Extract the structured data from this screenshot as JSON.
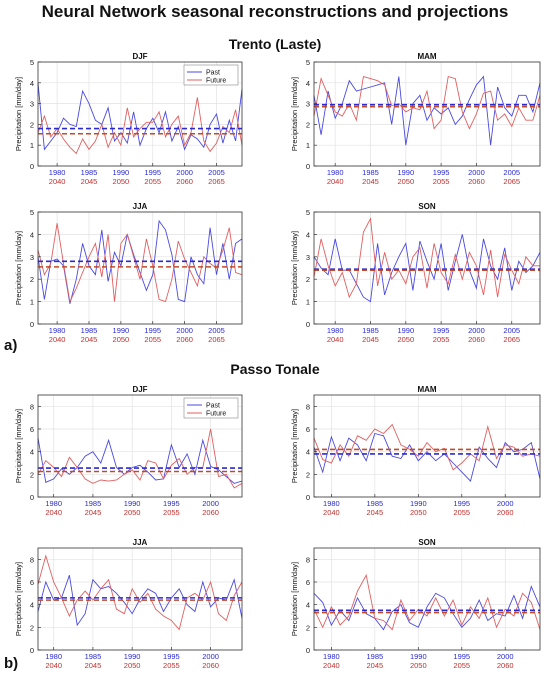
{
  "figure": {
    "title": "Neural Network seasonal reconstructions and projections",
    "sites": [
      {
        "name": "Trento (Laste)",
        "tag": "a)"
      },
      {
        "name": "Passo Tonale",
        "tag": "b)"
      }
    ]
  },
  "colors": {
    "past": "#4a4ae0",
    "future": "#e06060",
    "past_mean": "#2a2ad0",
    "future_mean": "#c04a2a"
  },
  "chart_data": [
    {
      "type": "line",
      "site": "Trento (Laste)",
      "title": "DJF",
      "ylabel": "Precipitation [mm/day]",
      "ylim": [
        0,
        5
      ],
      "yticks": [
        0,
        1,
        2,
        3,
        4,
        5
      ],
      "xlim": [
        1977,
        2009
      ],
      "x_ticks_past": [
        "1980",
        "1985",
        "1990",
        "1995",
        "2000",
        "2005"
      ],
      "x_ticks_future": [
        "2040",
        "2045",
        "2050",
        "2055",
        "2060",
        "2065"
      ],
      "legend": [
        "Past",
        "Future"
      ],
      "legend_position": "top-right",
      "grid": true,
      "x": [
        1977,
        1978,
        1979,
        1980,
        1981,
        1982,
        1983,
        1984,
        1985,
        1986,
        1987,
        1988,
        1989,
        1990,
        1991,
        1992,
        1993,
        1994,
        1995,
        1996,
        1997,
        1998,
        1999,
        2000,
        2001,
        2002,
        2003,
        2004,
        2005,
        2006,
        2007,
        2008,
        2009
      ],
      "series": [
        {
          "name": "Past",
          "values": [
            4.0,
            0.8,
            1.2,
            1.6,
            2.3,
            2.0,
            1.9,
            3.6,
            3.0,
            2.2,
            2.0,
            2.8,
            1.2,
            1.6,
            1.1,
            2.6,
            1.0,
            1.8,
            2.3,
            1.6,
            2.6,
            1.2,
            1.9,
            0.8,
            1.5,
            1.3,
            0.9,
            2.0,
            2.5,
            1.1,
            2.2,
            1.2,
            3.7
          ],
          "mean": 1.8
        },
        {
          "name": "Future",
          "values": [
            1.6,
            2.4,
            1.4,
            1.8,
            1.3,
            0.9,
            0.6,
            1.3,
            0.8,
            1.2,
            2.0,
            0.9,
            1.6,
            1.0,
            2.8,
            1.4,
            1.8,
            2.1,
            2.1,
            2.6,
            1.4,
            2.0,
            2.4,
            1.0,
            1.6,
            3.3,
            1.2,
            0.7,
            1.1,
            1.9,
            1.6,
            2.7,
            1.0
          ],
          "mean": 1.55
        }
      ]
    },
    {
      "type": "line",
      "site": "Trento (Laste)",
      "title": "MAM",
      "ylabel": "Precipitation [mm/day]",
      "ylim": [
        0,
        5
      ],
      "yticks": [
        0,
        1,
        2,
        3,
        4,
        5
      ],
      "xlim": [
        1977,
        2009
      ],
      "x_ticks_past": [
        "1980",
        "1985",
        "1990",
        "1995",
        "2000",
        "2005"
      ],
      "x_ticks_future": [
        "2040",
        "2045",
        "2050",
        "2055",
        "2060",
        "2065"
      ],
      "grid": true,
      "x": [
        1977,
        1978,
        1979,
        1980,
        1981,
        1982,
        1983,
        1984,
        1985,
        1986,
        1987,
        1988,
        1989,
        1990,
        1991,
        1992,
        1993,
        1994,
        1995,
        1996,
        1997,
        1998,
        1999,
        2000,
        2001,
        2002,
        2003,
        2004,
        2005,
        2006,
        2007,
        2008,
        2009
      ],
      "series": [
        {
          "name": "Past",
          "values": [
            3.4,
            1.5,
            3.6,
            2.3,
            3.0,
            4.1,
            3.6,
            3.7,
            3.8,
            3.9,
            4.0,
            2.0,
            4.3,
            1.0,
            3.0,
            3.4,
            2.2,
            2.8,
            2.5,
            2.8,
            2.0,
            2.4,
            3.2,
            3.9,
            4.3,
            1.0,
            3.8,
            2.8,
            2.4,
            3.4,
            3.4,
            2.6,
            4.0
          ],
          "mean": 2.95
        },
        {
          "name": "Future",
          "values": [
            2.4,
            4.2,
            3.4,
            2.6,
            2.4,
            3.0,
            2.2,
            4.3,
            4.2,
            4.1,
            3.9,
            2.9,
            3.0,
            2.6,
            2.8,
            2.7,
            3.6,
            1.8,
            2.2,
            4.3,
            4.2,
            2.6,
            1.8,
            2.5,
            3.5,
            3.6,
            2.2,
            2.5,
            1.9,
            2.8,
            2.2,
            2.2,
            3.4
          ],
          "mean": 2.85
        }
      ]
    },
    {
      "type": "line",
      "site": "Trento (Laste)",
      "title": "JJA",
      "ylabel": "Precipitation [mm/day]",
      "ylim": [
        0,
        5
      ],
      "yticks": [
        0,
        1,
        2,
        3,
        4,
        5
      ],
      "xlim": [
        1977,
        2009
      ],
      "x_ticks_past": [
        "1980",
        "1985",
        "1990",
        "1995",
        "2000",
        "2005"
      ],
      "x_ticks_future": [
        "2040",
        "2045",
        "2050",
        "2055",
        "2060",
        "2065"
      ],
      "grid": true,
      "x": [
        1977,
        1978,
        1979,
        1980,
        1981,
        1982,
        1983,
        1984,
        1985,
        1986,
        1987,
        1988,
        1989,
        1990,
        1991,
        1992,
        1993,
        1994,
        1995,
        1996,
        1997,
        1998,
        1999,
        2000,
        2001,
        2002,
        2003,
        2004,
        2005,
        2006,
        2007,
        2008,
        2009
      ],
      "series": [
        {
          "name": "Past",
          "values": [
            3.0,
            1.1,
            2.8,
            2.9,
            2.6,
            0.9,
            2.0,
            3.6,
            2.6,
            2.2,
            4.2,
            1.9,
            3.2,
            2.6,
            4.0,
            3.1,
            2.3,
            1.5,
            2.2,
            4.6,
            4.2,
            3.1,
            1.1,
            1.0,
            3.0,
            2.2,
            1.8,
            4.3,
            2.2,
            3.6,
            2.0,
            3.6,
            3.8
          ],
          "mean": 2.8
        },
        {
          "name": "Future",
          "values": [
            3.3,
            2.2,
            2.7,
            4.5,
            2.7,
            1.0,
            1.6,
            2.3,
            3.0,
            3.6,
            2.1,
            4.0,
            1.0,
            3.6,
            4.0,
            3.0,
            2.0,
            3.8,
            2.6,
            1.1,
            1.0,
            2.0,
            3.7,
            2.9,
            2.3,
            1.7,
            3.0,
            2.7,
            2.5,
            3.3,
            4.3,
            2.3,
            2.2
          ],
          "mean": 2.55
        }
      ]
    },
    {
      "type": "line",
      "site": "Trento (Laste)",
      "title": "SON",
      "ylabel": "Precipitation [mm/day]",
      "ylim": [
        0,
        5
      ],
      "yticks": [
        0,
        1,
        2,
        3,
        4,
        5
      ],
      "xlim": [
        1977,
        2009
      ],
      "x_ticks_past": [
        "1980",
        "1985",
        "1990",
        "1995",
        "2000",
        "2005"
      ],
      "x_ticks_future": [
        "2040",
        "2045",
        "2050",
        "2055",
        "2060",
        "2065"
      ],
      "grid": true,
      "x": [
        1977,
        1978,
        1979,
        1980,
        1981,
        1982,
        1983,
        1984,
        1985,
        1986,
        1987,
        1988,
        1989,
        1990,
        1991,
        1992,
        1993,
        1994,
        1995,
        1996,
        1997,
        1998,
        1999,
        2000,
        2001,
        2002,
        2003,
        2004,
        2005,
        2006,
        2007,
        2008,
        2009
      ],
      "series": [
        {
          "name": "Past",
          "values": [
            3.0,
            2.5,
            2.2,
            3.8,
            2.4,
            2.4,
            1.8,
            1.2,
            1.0,
            3.6,
            1.3,
            2.3,
            3.0,
            3.6,
            1.5,
            3.7,
            2.8,
            2.0,
            3.6,
            1.5,
            2.8,
            4.0,
            2.4,
            1.6,
            3.8,
            2.6,
            2.0,
            3.4,
            1.5,
            2.8,
            2.3,
            2.6,
            3.2
          ],
          "mean": 2.45
        },
        {
          "name": "Future",
          "values": [
            2.1,
            3.8,
            2.6,
            1.7,
            2.3,
            1.2,
            1.8,
            4.1,
            4.7,
            1.7,
            3.2,
            2.0,
            2.4,
            1.8,
            3.0,
            3.4,
            1.6,
            3.6,
            2.3,
            1.8,
            3.1,
            2.0,
            3.2,
            2.6,
            1.3,
            3.3,
            1.2,
            3.1,
            2.4,
            1.8,
            3.0,
            2.6,
            2.6
          ],
          "mean": 2.4
        }
      ]
    },
    {
      "type": "line",
      "site": "Passo Tonale",
      "title": "DJF",
      "ylabel": "Precipitation [mm/day]",
      "ylim": [
        0,
        9
      ],
      "yticks": [
        0,
        2,
        4,
        6,
        8
      ],
      "xlim": [
        1978,
        2004
      ],
      "x_ticks_past": [
        "1980",
        "1985",
        "1990",
        "1995",
        "2000"
      ],
      "x_ticks_future": [
        "2040",
        "2045",
        "2050",
        "2055",
        "2060"
      ],
      "legend": [
        "Past",
        "Future"
      ],
      "legend_position": "top-right",
      "grid": true,
      "x": [
        1978,
        1979,
        1980,
        1981,
        1982,
        1983,
        1984,
        1985,
        1986,
        1987,
        1988,
        1989,
        1990,
        1991,
        1992,
        1993,
        1994,
        1995,
        1996,
        1997,
        1998,
        1999,
        2000,
        2001,
        2002,
        2003,
        2004
      ],
      "series": [
        {
          "name": "Past",
          "values": [
            5.2,
            1.3,
            1.6,
            2.5,
            2.0,
            2.6,
            3.6,
            4.0,
            3.0,
            5.0,
            2.6,
            2.0,
            2.6,
            2.8,
            2.2,
            1.5,
            1.6,
            4.6,
            2.6,
            3.8,
            2.0,
            5.0,
            2.7,
            2.4,
            1.8,
            1.2,
            1.4
          ],
          "mean": 2.55
        },
        {
          "name": "Future",
          "values": [
            2.0,
            3.2,
            2.6,
            1.8,
            3.5,
            2.6,
            1.6,
            1.2,
            1.5,
            1.4,
            1.5,
            2.0,
            2.4,
            1.5,
            3.2,
            3.0,
            1.6,
            2.8,
            3.4,
            2.0,
            2.6,
            2.6,
            6.0,
            1.8,
            2.0,
            0.8,
            1.2
          ],
          "mean": 2.25
        }
      ]
    },
    {
      "type": "line",
      "site": "Passo Tonale",
      "title": "MAM",
      "ylabel": "Precipitation [mm/day]",
      "ylim": [
        0,
        9
      ],
      "yticks": [
        0,
        2,
        4,
        6,
        8
      ],
      "xlim": [
        1978,
        2004
      ],
      "x_ticks_past": [
        "1980",
        "1985",
        "1990",
        "1995",
        "2000"
      ],
      "x_ticks_future": [
        "2040",
        "2045",
        "2050",
        "2055",
        "2060"
      ],
      "grid": true,
      "x": [
        1978,
        1979,
        1980,
        1981,
        1982,
        1983,
        1984,
        1985,
        1986,
        1987,
        1988,
        1989,
        1990,
        1991,
        1992,
        1993,
        1994,
        1995,
        1996,
        1997,
        1998,
        1999,
        2000,
        2001,
        2002,
        2003,
        2004
      ],
      "series": [
        {
          "name": "Past",
          "values": [
            4.4,
            2.2,
            5.3,
            3.2,
            5.2,
            4.6,
            3.2,
            5.6,
            5.4,
            3.6,
            3.4,
            4.6,
            3.2,
            4.0,
            3.2,
            3.8,
            3.0,
            2.2,
            1.4,
            4.4,
            3.4,
            2.6,
            4.8,
            4.0,
            4.2,
            4.8,
            1.6
          ],
          "mean": 3.8
        },
        {
          "name": "Future",
          "values": [
            5.2,
            3.3,
            3.0,
            4.6,
            3.6,
            5.4,
            5.0,
            6.0,
            5.6,
            6.4,
            4.6,
            4.2,
            3.6,
            4.8,
            4.0,
            4.3,
            2.4,
            3.0,
            3.8,
            3.2,
            6.2,
            3.4,
            4.6,
            4.4,
            3.6,
            3.8,
            3.6
          ],
          "mean": 4.2
        }
      ]
    },
    {
      "type": "line",
      "site": "Passo Tonale",
      "title": "JJA",
      "ylabel": "Precipitation [mm/day]",
      "ylim": [
        0,
        9
      ],
      "yticks": [
        0,
        2,
        4,
        6,
        8
      ],
      "xlim": [
        1978,
        2004
      ],
      "x_ticks_past": [
        "1980",
        "1985",
        "1990",
        "1995",
        "2000"
      ],
      "x_ticks_future": [
        "2040",
        "2045",
        "2050",
        "2055",
        "2060"
      ],
      "grid": true,
      "x": [
        1978,
        1979,
        1980,
        1981,
        1982,
        1983,
        1984,
        1985,
        1986,
        1987,
        1988,
        1989,
        1990,
        1991,
        1992,
        1993,
        1994,
        1995,
        1996,
        1997,
        1998,
        1999,
        2000,
        2001,
        2002,
        2003,
        2004
      ],
      "series": [
        {
          "name": "Past",
          "values": [
            3.4,
            6.0,
            4.4,
            4.6,
            6.6,
            2.2,
            3.2,
            6.2,
            5.4,
            5.6,
            5.0,
            4.2,
            3.2,
            4.5,
            5.4,
            5.0,
            3.4,
            4.6,
            5.4,
            4.0,
            3.4,
            6.0,
            3.8,
            4.6,
            4.4,
            6.2,
            2.8
          ],
          "mean": 4.6
        },
        {
          "name": "Future",
          "values": [
            5.8,
            8.3,
            6.0,
            4.6,
            3.0,
            4.4,
            5.2,
            4.4,
            5.4,
            6.2,
            3.6,
            3.2,
            5.4,
            4.2,
            5.0,
            3.6,
            3.0,
            2.6,
            1.8,
            4.6,
            5.0,
            4.4,
            6.0,
            3.2,
            2.6,
            4.8,
            6.0
          ],
          "mean": 4.4
        }
      ]
    },
    {
      "type": "line",
      "site": "Passo Tonale",
      "title": "SON",
      "ylabel": "Precipitation [mm/day]",
      "ylim": [
        0,
        9
      ],
      "yticks": [
        0,
        2,
        4,
        6,
        8
      ],
      "xlim": [
        1978,
        2004
      ],
      "x_ticks_past": [
        "1980",
        "1985",
        "1990",
        "1995",
        "2000"
      ],
      "x_ticks_future": [
        "2040",
        "2045",
        "2050",
        "2055",
        "2060"
      ],
      "grid": true,
      "x": [
        1978,
        1979,
        1980,
        1981,
        1982,
        1983,
        1984,
        1985,
        1986,
        1987,
        1988,
        1989,
        1990,
        1991,
        1992,
        1993,
        1994,
        1995,
        1996,
        1997,
        1998,
        1999,
        2000,
        2001,
        2002,
        2003,
        2004
      ],
      "series": [
        {
          "name": "Past",
          "values": [
            5.0,
            4.2,
            2.2,
            3.5,
            2.6,
            4.6,
            3.2,
            2.8,
            1.8,
            3.4,
            4.0,
            2.4,
            2.0,
            3.8,
            5.0,
            4.6,
            3.2,
            2.0,
            2.8,
            4.4,
            2.6,
            3.2,
            3.0,
            4.8,
            2.8,
            5.6,
            3.8
          ],
          "mean": 3.5
        },
        {
          "name": "Future",
          "values": [
            3.6,
            2.0,
            3.8,
            2.2,
            3.0,
            5.2,
            6.6,
            2.8,
            2.6,
            1.8,
            4.4,
            2.6,
            3.6,
            3.0,
            4.6,
            3.0,
            4.4,
            2.2,
            3.8,
            2.8,
            4.6,
            2.0,
            3.6,
            3.0,
            5.0,
            4.2,
            1.8
          ],
          "mean": 3.3
        }
      ]
    }
  ]
}
